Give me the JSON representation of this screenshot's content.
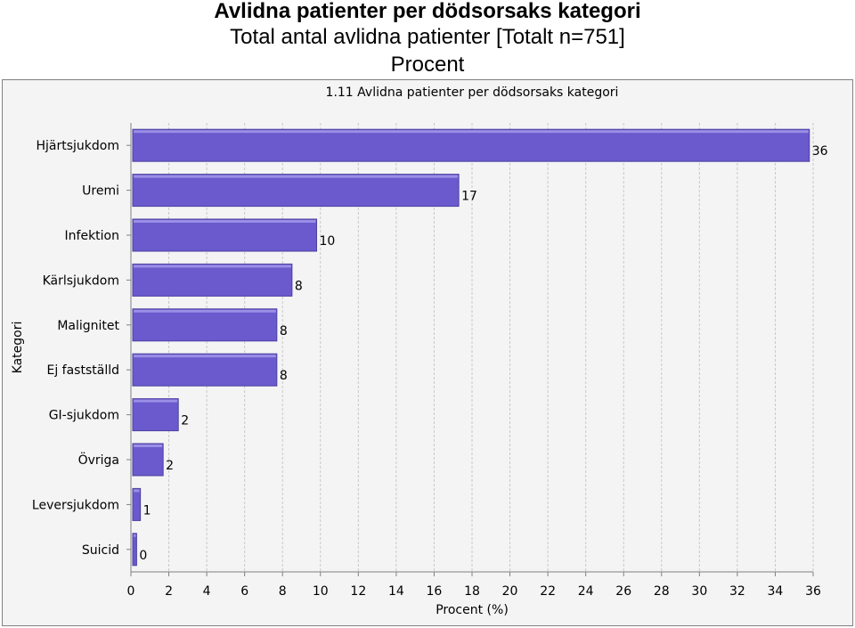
{
  "header": {
    "title": "Avlidna patienter per dödsorsaks kategori",
    "subtitle": "Total antal avlidna patienter [Totalt n=751]",
    "unit": "Procent"
  },
  "chart_data": {
    "type": "bar",
    "orientation": "horizontal",
    "title": "1.11 Avlidna patienter per dödsorsaks kategori",
    "xlabel": "Procent (%)",
    "ylabel": "Kategori",
    "categories": [
      "Hjärtsjukdom",
      "Uremi",
      "Infektion",
      "Kärlsjukdom",
      "Malignitet",
      "Ej fastställd",
      "GI-sjukdom",
      "Övriga",
      "Leversjukdom",
      "Suicid"
    ],
    "values": [
      35.8,
      17.3,
      9.8,
      8.5,
      7.7,
      7.7,
      2.5,
      1.7,
      0.5,
      0.3
    ],
    "value_labels": [
      "36",
      "17",
      "10",
      "8",
      "8",
      "8",
      "2",
      "2",
      "1",
      "0"
    ],
    "xlim": [
      0,
      36
    ],
    "xticks": [
      "0",
      "2",
      "4",
      "6",
      "8",
      "10",
      "12",
      "14",
      "16",
      "18",
      "20",
      "22",
      "24",
      "26",
      "28",
      "30",
      "32",
      "34",
      "36"
    ],
    "grid": true,
    "bar_color": "#6a5acd",
    "background": "#f4f4f4"
  }
}
